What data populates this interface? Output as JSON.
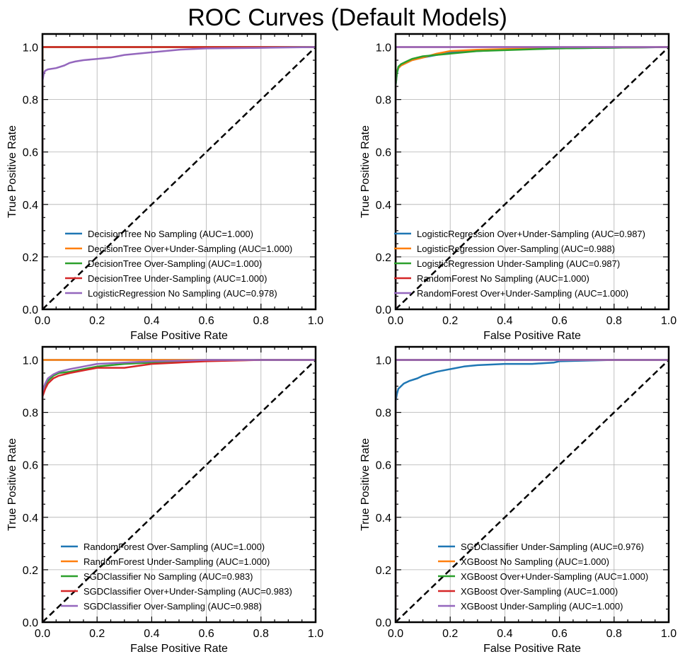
{
  "figure": {
    "title": "ROC Curves (Default Models)"
  },
  "colors": {
    "blue": "#1f77b4",
    "orange": "#ff7f0e",
    "green": "#2ca02c",
    "red": "#d62728",
    "purple": "#9467bd",
    "diagonal": "#000000",
    "grid": "#b0b0b0"
  },
  "chart_data": [
    {
      "type": "line",
      "xlabel": "False Positive Rate",
      "ylabel": "True Positive Rate",
      "xlim": [
        0,
        1
      ],
      "ylim": [
        0,
        1.05
      ],
      "xticks": [
        "0.0",
        "0.2",
        "0.4",
        "0.6",
        "0.8",
        "1.0"
      ],
      "yticks": [
        "0.0",
        "0.2",
        "0.4",
        "0.6",
        "0.8",
        "1.0"
      ],
      "grid": true,
      "legend_position": "lower-center",
      "diagonal": true,
      "series": [
        {
          "name": "DecisionTree No Sampling (AUC=1.000)",
          "color": "blue",
          "x": [
            0,
            0,
            1
          ],
          "y": [
            0,
            1,
            1
          ]
        },
        {
          "name": "DecisionTree Over+Under-Sampling (AUC=1.000)",
          "color": "orange",
          "x": [
            0,
            0,
            1
          ],
          "y": [
            0,
            1,
            1
          ]
        },
        {
          "name": "DecisionTree Over-Sampling (AUC=1.000)",
          "color": "green",
          "x": [
            0,
            0,
            1
          ],
          "y": [
            0,
            1,
            1
          ]
        },
        {
          "name": "DecisionTree Under-Sampling (AUC=1.000)",
          "color": "red",
          "x": [
            0,
            0,
            1
          ],
          "y": [
            0,
            1,
            1
          ]
        },
        {
          "name": "LogisticRegression No Sampling (AUC=0.978)",
          "color": "purple",
          "x": [
            0,
            0,
            0.005,
            0.01,
            0.02,
            0.05,
            0.08,
            0.1,
            0.12,
            0.15,
            0.2,
            0.25,
            0.3,
            0.4,
            0.5,
            0.6,
            0.8,
            1.0
          ],
          "y": [
            0,
            0.87,
            0.9,
            0.91,
            0.915,
            0.92,
            0.93,
            0.94,
            0.945,
            0.95,
            0.955,
            0.96,
            0.97,
            0.98,
            0.99,
            0.995,
            0.997,
            1.0
          ]
        }
      ]
    },
    {
      "type": "line",
      "xlabel": "False Positive Rate",
      "ylabel": "True Positive Rate",
      "xlim": [
        0,
        1
      ],
      "ylim": [
        0,
        1.05
      ],
      "xticks": [
        "0.0",
        "0.2",
        "0.4",
        "0.6",
        "0.8",
        "1.0"
      ],
      "yticks": [
        "0.0",
        "0.2",
        "0.4",
        "0.6",
        "0.8",
        "1.0"
      ],
      "grid": true,
      "legend_position": "lower-right",
      "diagonal": true,
      "series": [
        {
          "name": "LogisticRegression Over+Under-Sampling (AUC=0.987)",
          "color": "blue",
          "x": [
            0,
            0,
            0.005,
            0.01,
            0.02,
            0.04,
            0.06,
            0.1,
            0.15,
            0.2,
            0.3,
            0.4,
            0.6,
            1.0
          ],
          "y": [
            0,
            0.85,
            0.9,
            0.92,
            0.93,
            0.94,
            0.95,
            0.96,
            0.97,
            0.98,
            0.985,
            0.99,
            0.995,
            1.0
          ]
        },
        {
          "name": "LogisticRegression Over-Sampling (AUC=0.988)",
          "color": "orange",
          "x": [
            0,
            0,
            0.005,
            0.01,
            0.02,
            0.04,
            0.06,
            0.1,
            0.15,
            0.2,
            0.3,
            0.5,
            1.0
          ],
          "y": [
            0,
            0.86,
            0.91,
            0.92,
            0.93,
            0.94,
            0.95,
            0.96,
            0.975,
            0.985,
            0.99,
            0.995,
            1.0
          ]
        },
        {
          "name": "LogisticRegression Under-Sampling (AUC=0.987)",
          "color": "green",
          "x": [
            0,
            0,
            0.005,
            0.01,
            0.02,
            0.04,
            0.06,
            0.1,
            0.15,
            0.2,
            0.3,
            0.45,
            0.6,
            1.0
          ],
          "y": [
            0,
            0.85,
            0.9,
            0.925,
            0.935,
            0.945,
            0.955,
            0.965,
            0.97,
            0.975,
            0.985,
            0.99,
            0.995,
            1.0
          ]
        },
        {
          "name": "RandomForest No Sampling (AUC=1.000)",
          "color": "red",
          "x": [
            0,
            0,
            1
          ],
          "y": [
            0,
            1,
            1
          ]
        },
        {
          "name": "RandomForest Over+Under-Sampling (AUC=1.000)",
          "color": "purple",
          "x": [
            0,
            0,
            1
          ],
          "y": [
            0,
            1,
            1
          ]
        }
      ]
    },
    {
      "type": "line",
      "xlabel": "False Positive Rate",
      "ylabel": "True Positive Rate",
      "xlim": [
        0,
        1
      ],
      "ylim": [
        0,
        1.05
      ],
      "xticks": [
        "0.0",
        "0.2",
        "0.4",
        "0.6",
        "0.8",
        "1.0"
      ],
      "yticks": [
        "0.0",
        "0.2",
        "0.4",
        "0.6",
        "0.8",
        "1.0"
      ],
      "grid": true,
      "legend_position": "lower-center",
      "diagonal": true,
      "series": [
        {
          "name": "RandomForest Over-Sampling (AUC=1.000)",
          "color": "blue",
          "x": [
            0,
            0,
            1
          ],
          "y": [
            0,
            1,
            1
          ]
        },
        {
          "name": "RandomForest Under-Sampling (AUC=1.000)",
          "color": "orange",
          "x": [
            0,
            0,
            1
          ],
          "y": [
            0,
            1,
            1
          ]
        },
        {
          "name": "SGDClassifier No Sampling (AUC=0.983)",
          "color": "green",
          "x": [
            0,
            0,
            0.01,
            0.02,
            0.04,
            0.06,
            0.1,
            0.15,
            0.2,
            0.3,
            0.4,
            0.5,
            0.6,
            0.8,
            1.0
          ],
          "y": [
            0,
            0.87,
            0.9,
            0.92,
            0.94,
            0.95,
            0.955,
            0.965,
            0.975,
            0.985,
            0.99,
            0.993,
            0.997,
            1.0,
            1.0
          ]
        },
        {
          "name": "SGDClassifier Over+Under-Sampling (AUC=0.983)",
          "color": "red",
          "x": [
            0,
            0,
            0.01,
            0.02,
            0.04,
            0.06,
            0.1,
            0.15,
            0.2,
            0.3,
            0.4,
            0.5,
            0.6,
            0.8,
            1.0
          ],
          "y": [
            0,
            0.86,
            0.89,
            0.91,
            0.93,
            0.94,
            0.95,
            0.96,
            0.97,
            0.97,
            0.985,
            0.99,
            0.995,
            1.0,
            1.0
          ]
        },
        {
          "name": "SGDClassifier Over-Sampling (AUC=0.988)",
          "color": "purple",
          "x": [
            0,
            0,
            0.01,
            0.02,
            0.04,
            0.06,
            0.1,
            0.15,
            0.2,
            0.3,
            0.4,
            0.5,
            0.6,
            0.8,
            1.0
          ],
          "y": [
            0,
            0.88,
            0.91,
            0.93,
            0.945,
            0.955,
            0.965,
            0.975,
            0.985,
            0.99,
            0.995,
            0.997,
            1.0,
            1.0,
            1.0
          ]
        }
      ]
    },
    {
      "type": "line",
      "xlabel": "False Positive Rate",
      "ylabel": "True Positive Rate",
      "xlim": [
        0,
        1
      ],
      "ylim": [
        0,
        1.05
      ],
      "xticks": [
        "0.0",
        "0.2",
        "0.4",
        "0.6",
        "0.8",
        "1.0"
      ],
      "yticks": [
        "0.0",
        "0.2",
        "0.4",
        "0.6",
        "0.8",
        "1.0"
      ],
      "grid": true,
      "legend_position": "lower-right",
      "diagonal": true,
      "series": [
        {
          "name": "SGDClassifier Under-Sampling (AUC=0.976)",
          "color": "blue",
          "x": [
            0,
            0,
            0.005,
            0.01,
            0.02,
            0.03,
            0.05,
            0.08,
            0.1,
            0.15,
            0.2,
            0.25,
            0.3,
            0.4,
            0.5,
            0.58,
            0.6,
            0.8,
            1.0
          ],
          "y": [
            0,
            0.84,
            0.87,
            0.89,
            0.9,
            0.91,
            0.92,
            0.93,
            0.94,
            0.955,
            0.965,
            0.975,
            0.98,
            0.985,
            0.985,
            0.99,
            0.995,
            1.0,
            1.0
          ]
        },
        {
          "name": "XGBoost No Sampling (AUC=1.000)",
          "color": "orange",
          "x": [
            0,
            0,
            1
          ],
          "y": [
            0,
            1,
            1
          ]
        },
        {
          "name": "XGBoost Over+Under-Sampling (AUC=1.000)",
          "color": "green",
          "x": [
            0,
            0,
            1
          ],
          "y": [
            0,
            1,
            1
          ]
        },
        {
          "name": "XGBoost Over-Sampling (AUC=1.000)",
          "color": "red",
          "x": [
            0,
            0,
            1
          ],
          "y": [
            0,
            1,
            1
          ]
        },
        {
          "name": "XGBoost Under-Sampling (AUC=1.000)",
          "color": "purple",
          "x": [
            0,
            0,
            1
          ],
          "y": [
            0,
            1,
            1
          ]
        }
      ]
    }
  ]
}
